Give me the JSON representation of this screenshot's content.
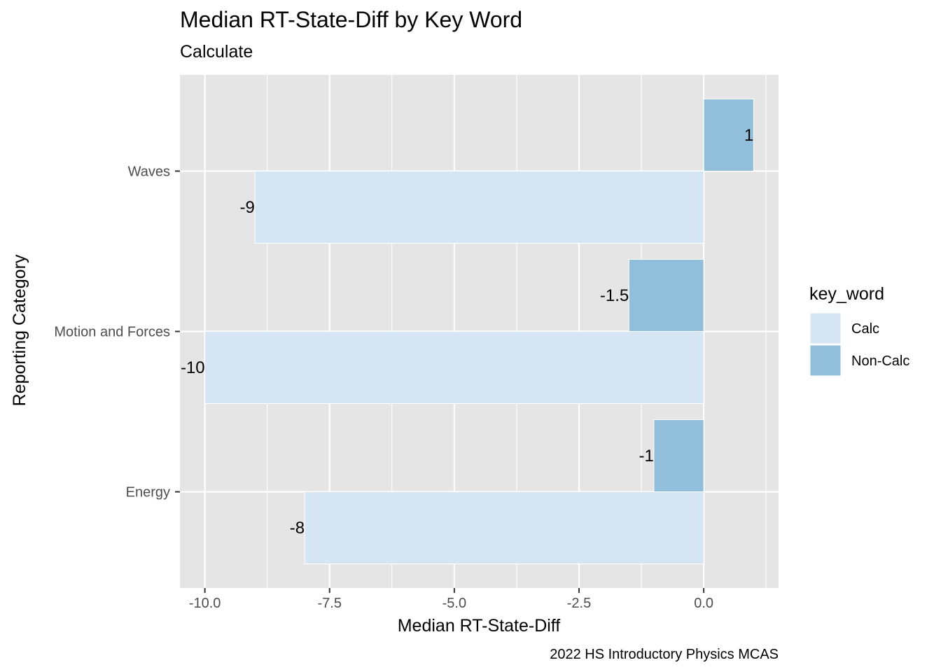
{
  "chart_data": {
    "type": "bar",
    "orientation": "horizontal",
    "title": "Median RT-State-Diff by Key Word",
    "subtitle": "Calculate",
    "xlabel": "Median RT-State-Diff",
    "ylabel": "Reporting Category",
    "caption": "2022 HS Introductory Physics MCAS",
    "categories": [
      "Energy",
      "Motion and Forces",
      "Waves"
    ],
    "x_ticks": [
      "-10.0",
      "-7.5",
      "-5.0",
      "-2.5",
      "0.0"
    ],
    "x_tick_values": [
      -10,
      -7.5,
      -5,
      -2.5,
      0
    ],
    "xlim": [
      -10.5,
      1.5
    ],
    "series": [
      {
        "name": "Calc",
        "color": "#d6e5f4",
        "values": [
          -8,
          -10,
          -9
        ],
        "labels": [
          "-8",
          "-10",
          "-9"
        ]
      },
      {
        "name": "Non-Calc",
        "color": "#91bfdb",
        "values": [
          -1,
          -1.5,
          1
        ],
        "labels": [
          "-1",
          "-1.5",
          "1"
        ]
      }
    ],
    "legend": {
      "title": "key_word",
      "placement": "right"
    },
    "grid": true,
    "panel_background": "#e5e5e5"
  }
}
